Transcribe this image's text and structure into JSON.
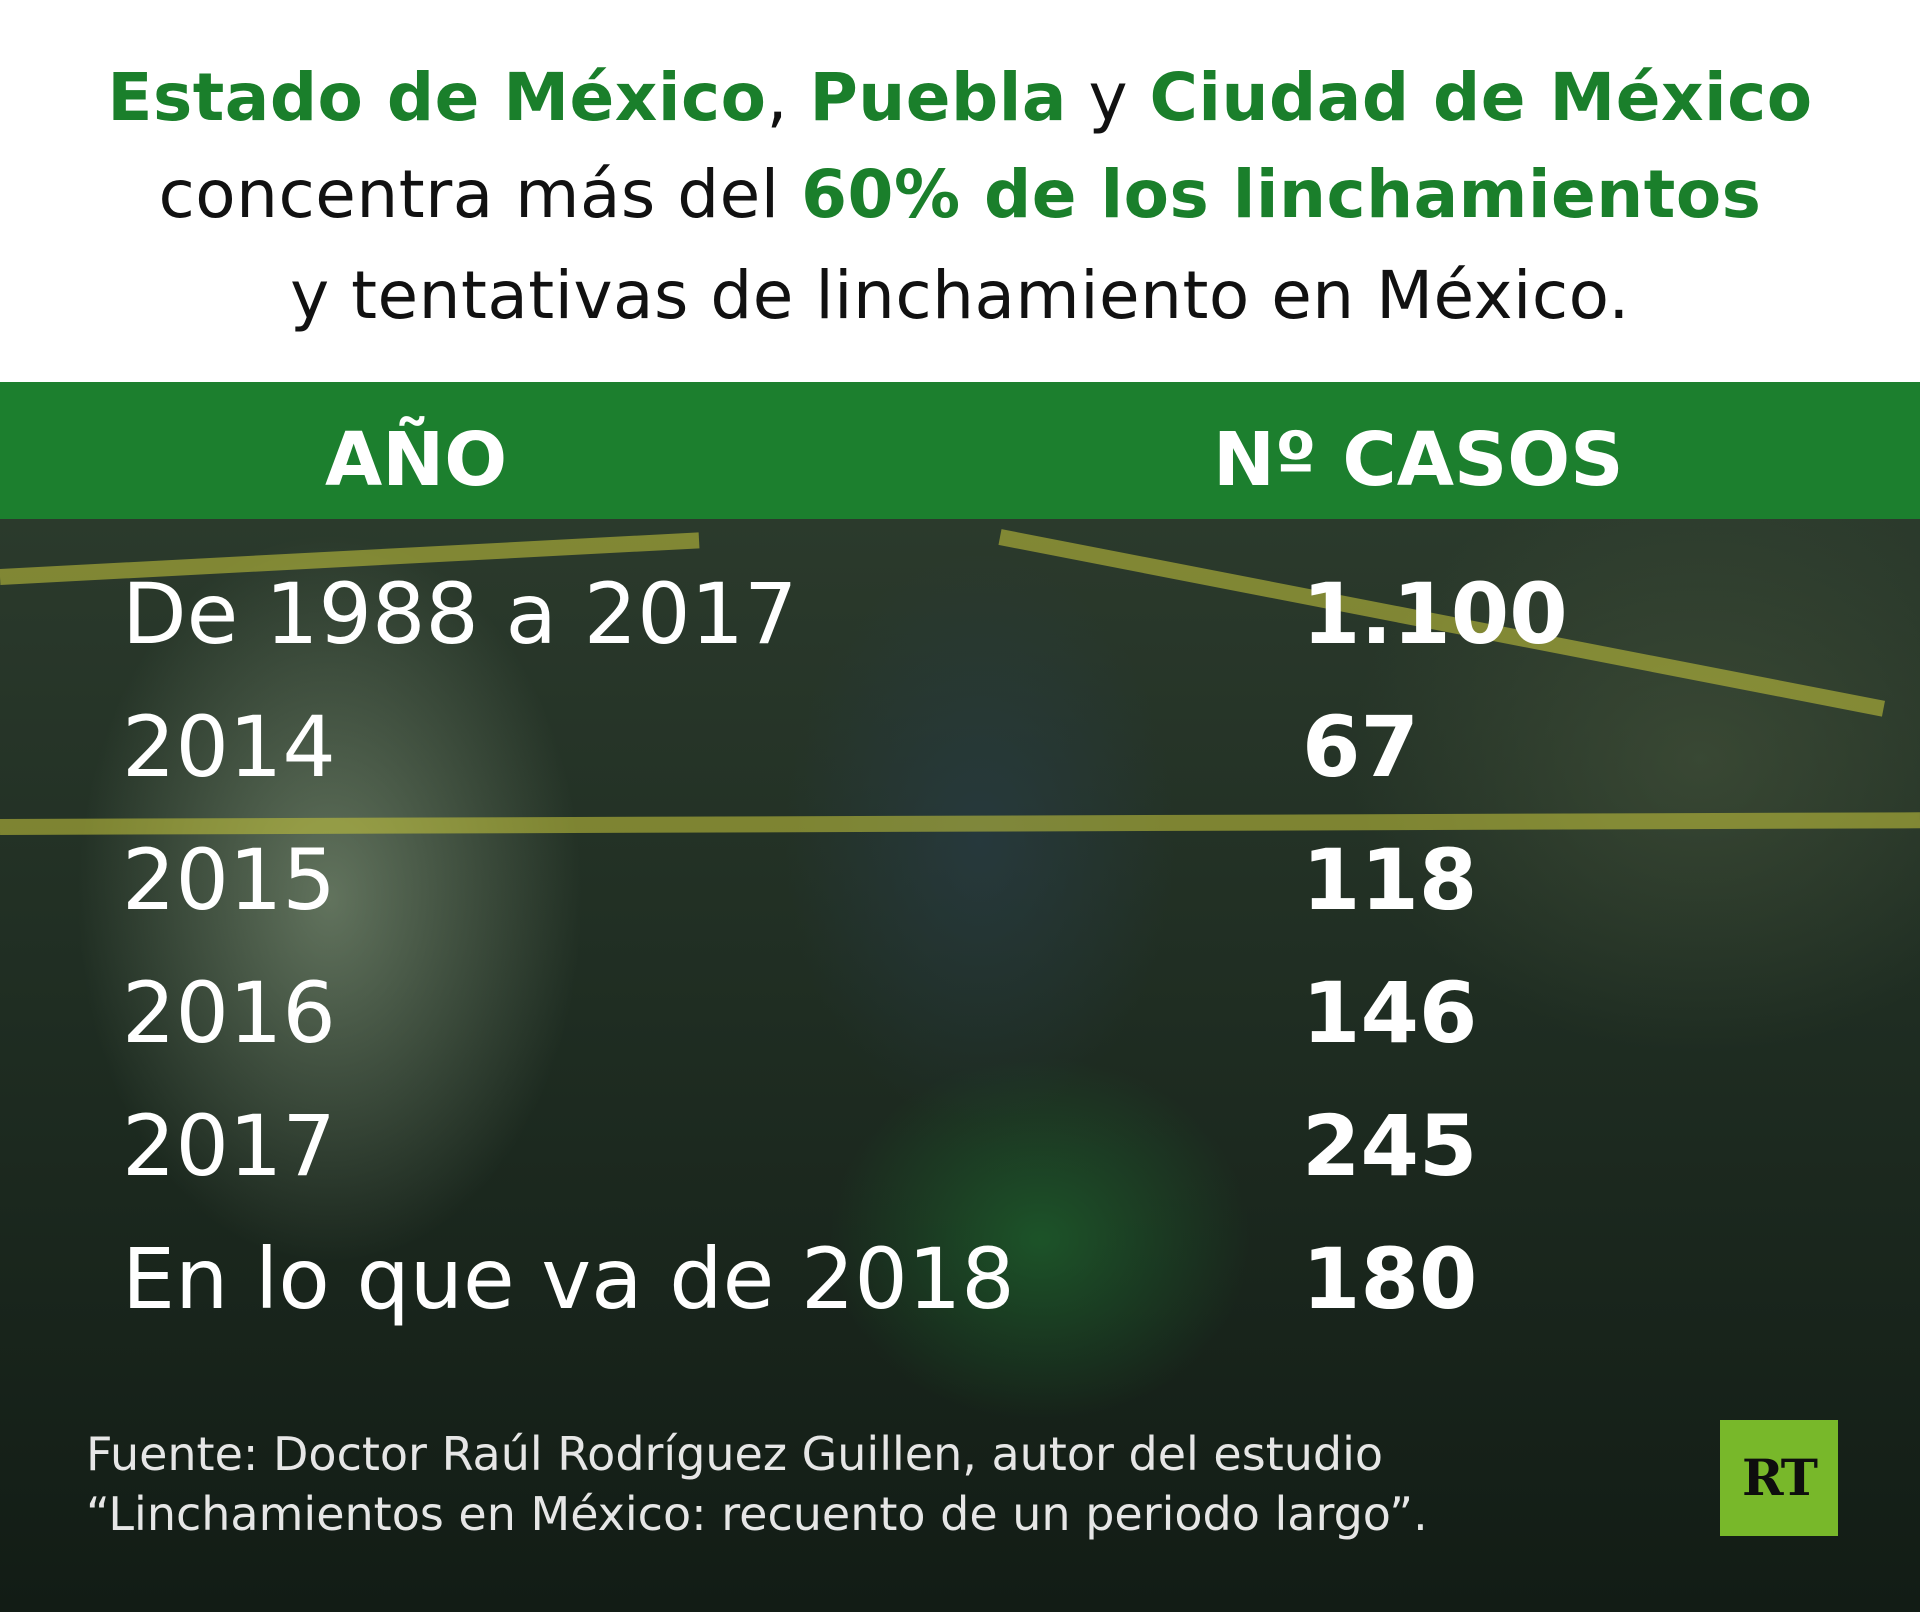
{
  "title": {
    "line1": {
      "p1": "Estado de México",
      "sep1": ", ",
      "p2": "Puebla",
      "sep2": " y ",
      "p3": "Ciudad de México"
    },
    "line2": {
      "plain": "concentra más del ",
      "highlight": "60% de los linchamientos"
    },
    "line3": "y tentativas de linchamiento en México."
  },
  "colors": {
    "accent_green": "#1a7f2b",
    "header_band": "#1c7f2e",
    "logo_green": "#78b82a"
  },
  "chart_data": {
    "type": "table",
    "columns": [
      "AÑO",
      "Nº CASOS"
    ],
    "rows": [
      {
        "label": "De 1988 a 2017",
        "value": "1.100"
      },
      {
        "label": "2014",
        "value": "67"
      },
      {
        "label": "2015",
        "value": "118"
      },
      {
        "label": "2016",
        "value": "146"
      },
      {
        "label": "2017",
        "value": "245"
      },
      {
        "label": "En lo que va de 2018",
        "value": "180"
      }
    ]
  },
  "source": {
    "line1": "Fuente: Doctor Raúl Rodríguez Guillen, autor del estudio",
    "line2": "“Linchamientos en México: recuento de un periodo largo”."
  },
  "logo": {
    "text": "RT"
  }
}
